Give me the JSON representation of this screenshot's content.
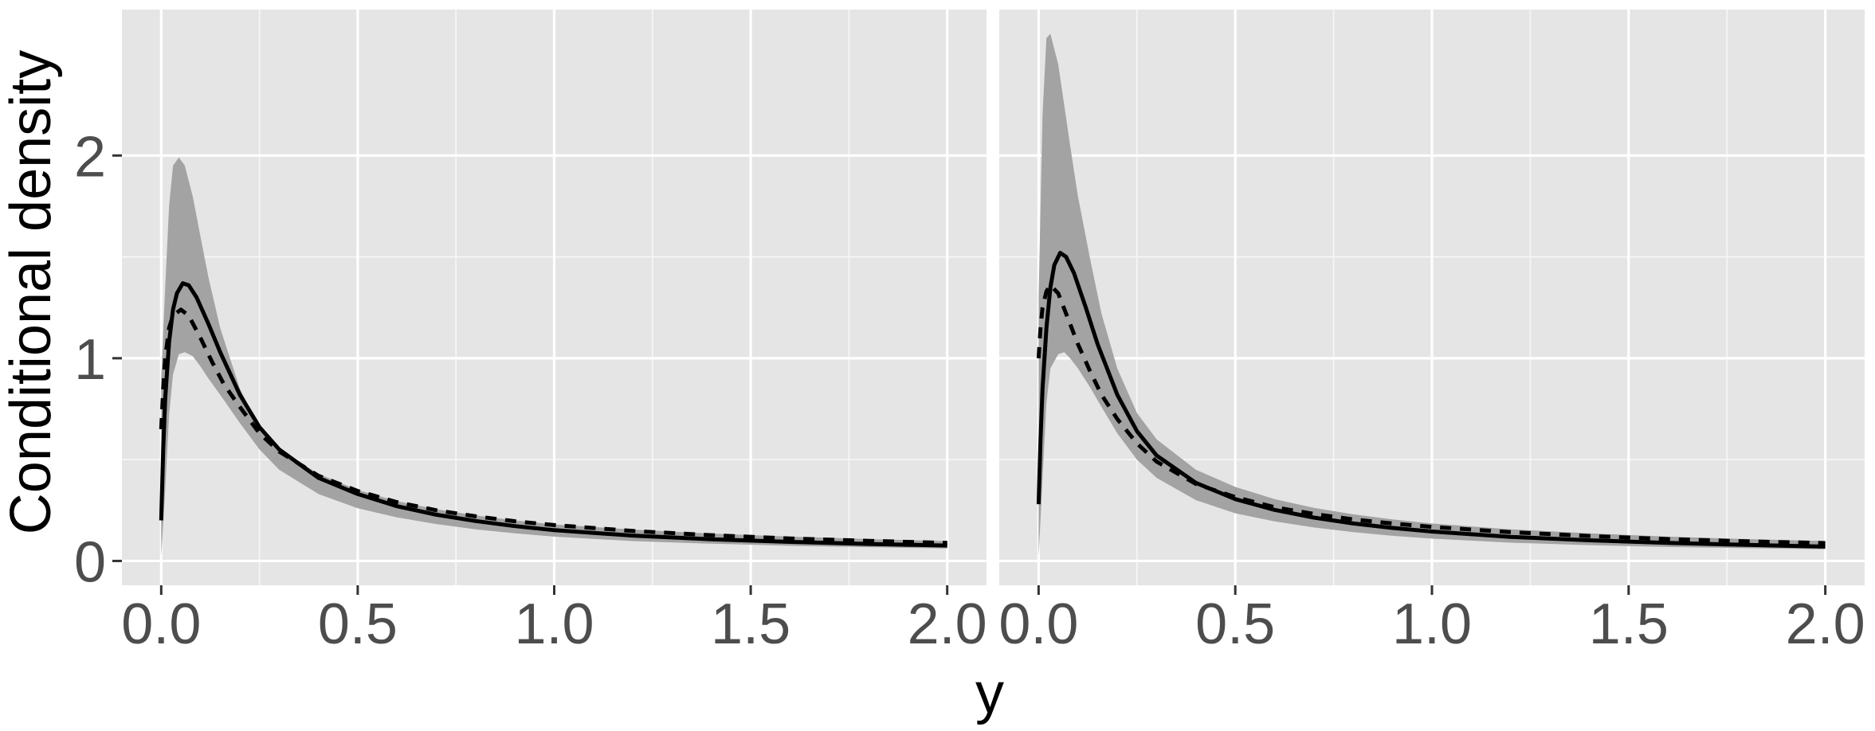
{
  "chart_data": {
    "type": "area",
    "xlabel": "y",
    "ylabel": "Conditional density",
    "grid": true,
    "panels": [
      {
        "xlim": [
          -0.1,
          2.1
        ],
        "ylim": [
          -0.12,
          2.72
        ],
        "x_ticks": [
          0.0,
          0.5,
          1.0,
          1.5,
          2.0
        ],
        "x_tick_labels": [
          "0.0",
          "0.5",
          "1.0",
          "1.5",
          "2.0"
        ],
        "y_ticks": [
          0,
          1,
          2
        ],
        "y_tick_labels": [
          "0",
          "1",
          "2"
        ],
        "series": [
          {
            "style": "ribbon",
            "x": [
              0.0,
              0.01,
              0.02,
              0.03,
              0.045,
              0.06,
              0.08,
              0.1,
              0.12,
              0.15,
              0.2,
              0.25,
              0.3,
              0.4,
              0.5,
              0.6,
              0.7,
              0.8,
              0.9,
              1.0,
              1.2,
              1.4,
              1.6,
              1.8,
              2.0
            ],
            "lower": [
              0.02,
              0.35,
              0.72,
              0.92,
              1.02,
              1.03,
              1.01,
              0.96,
              0.9,
              0.82,
              0.68,
              0.55,
              0.45,
              0.33,
              0.26,
              0.215,
              0.182,
              0.156,
              0.136,
              0.12,
              0.098,
              0.085,
              0.075,
              0.068,
              0.062
            ],
            "upper": [
              0.9,
              1.35,
              1.75,
              1.95,
              1.99,
              1.95,
              1.8,
              1.6,
              1.4,
              1.15,
              0.85,
              0.66,
              0.55,
              0.43,
              0.35,
              0.295,
              0.255,
              0.225,
              0.2,
              0.18,
              0.155,
              0.135,
              0.12,
              0.108,
              0.098
            ]
          },
          {
            "style": "solid",
            "x": [
              0.0,
              0.005,
              0.01,
              0.02,
              0.03,
              0.04,
              0.055,
              0.07,
              0.09,
              0.12,
              0.15,
              0.2,
              0.25,
              0.3,
              0.4,
              0.5,
              0.6,
              0.7,
              0.8,
              0.9,
              1.0,
              1.2,
              1.4,
              1.6,
              1.8,
              2.0
            ],
            "y": [
              0.2,
              0.55,
              0.8,
              1.08,
              1.24,
              1.32,
              1.37,
              1.36,
              1.3,
              1.17,
              1.03,
              0.82,
              0.66,
              0.55,
              0.41,
              0.33,
              0.27,
              0.228,
              0.197,
              0.172,
              0.152,
              0.125,
              0.107,
              0.094,
              0.084,
              0.076
            ]
          },
          {
            "style": "dashed",
            "x": [
              0.0,
              0.005,
              0.01,
              0.02,
              0.03,
              0.05,
              0.07,
              0.1,
              0.13,
              0.16,
              0.2,
              0.25,
              0.3,
              0.4,
              0.5,
              0.6,
              0.7,
              0.8,
              0.9,
              1.0,
              1.2,
              1.4,
              1.6,
              1.8,
              2.0
            ],
            "y": [
              0.65,
              0.85,
              1.0,
              1.15,
              1.21,
              1.24,
              1.21,
              1.1,
              0.98,
              0.87,
              0.76,
              0.63,
              0.54,
              0.42,
              0.345,
              0.29,
              0.25,
              0.22,
              0.196,
              0.177,
              0.148,
              0.127,
              0.111,
              0.099,
              0.089
            ]
          }
        ]
      },
      {
        "xlim": [
          -0.1,
          2.1
        ],
        "ylim": [
          -0.12,
          2.72
        ],
        "x_ticks": [
          0.0,
          0.5,
          1.0,
          1.5,
          2.0
        ],
        "x_tick_labels": [
          "0.0",
          "0.5",
          "1.0",
          "1.5",
          "2.0"
        ],
        "series": [
          {
            "style": "ribbon",
            "x": [
              0.0,
              0.01,
              0.02,
              0.03,
              0.05,
              0.065,
              0.08,
              0.1,
              0.13,
              0.16,
              0.2,
              0.25,
              0.3,
              0.4,
              0.5,
              0.6,
              0.7,
              0.8,
              0.9,
              1.0,
              1.2,
              1.4,
              1.6,
              1.8,
              2.0
            ],
            "lower": [
              0.02,
              0.4,
              0.78,
              0.95,
              1.02,
              1.03,
              1.0,
              0.95,
              0.86,
              0.76,
              0.63,
              0.5,
              0.41,
              0.3,
              0.235,
              0.195,
              0.165,
              0.142,
              0.124,
              0.11,
              0.09,
              0.078,
              0.069,
              0.063,
              0.058
            ],
            "upper": [
              1.3,
              2.2,
              2.58,
              2.6,
              2.45,
              2.25,
              2.05,
              1.8,
              1.5,
              1.22,
              0.95,
              0.73,
              0.6,
              0.45,
              0.365,
              0.305,
              0.262,
              0.23,
              0.205,
              0.185,
              0.156,
              0.136,
              0.12,
              0.108,
              0.098
            ]
          },
          {
            "style": "solid",
            "x": [
              0.0,
              0.005,
              0.01,
              0.02,
              0.03,
              0.04,
              0.055,
              0.07,
              0.09,
              0.12,
              0.15,
              0.2,
              0.25,
              0.3,
              0.4,
              0.5,
              0.6,
              0.7,
              0.8,
              0.9,
              1.0,
              1.2,
              1.4,
              1.6,
              1.8,
              2.0
            ],
            "y": [
              0.28,
              0.6,
              0.85,
              1.15,
              1.35,
              1.46,
              1.52,
              1.5,
              1.42,
              1.25,
              1.07,
              0.82,
              0.64,
              0.52,
              0.385,
              0.305,
              0.252,
              0.214,
              0.185,
              0.163,
              0.145,
              0.119,
              0.102,
              0.089,
              0.079,
              0.071
            ]
          },
          {
            "style": "dashed",
            "x": [
              0.0,
              0.005,
              0.01,
              0.02,
              0.03,
              0.05,
              0.07,
              0.1,
              0.13,
              0.16,
              0.2,
              0.25,
              0.3,
              0.4,
              0.5,
              0.6,
              0.7,
              0.8,
              0.9,
              1.0,
              1.2,
              1.4,
              1.6,
              1.8,
              2.0
            ],
            "y": [
              1.0,
              1.15,
              1.25,
              1.33,
              1.36,
              1.32,
              1.22,
              1.07,
              0.94,
              0.82,
              0.7,
              0.58,
              0.49,
              0.38,
              0.315,
              0.265,
              0.232,
              0.205,
              0.185,
              0.168,
              0.142,
              0.123,
              0.108,
              0.097,
              0.088
            ]
          }
        ]
      }
    ]
  }
}
